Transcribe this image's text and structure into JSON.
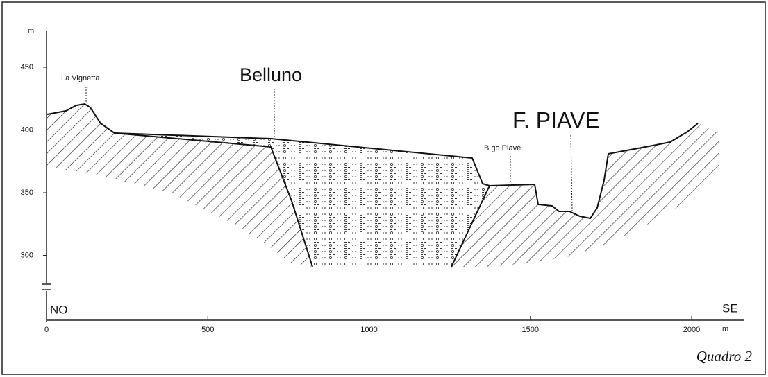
{
  "figure": {
    "caption": "Quadro 2",
    "labels": {
      "la_vignetta": "La Vignetta",
      "belluno": "Belluno",
      "b_go_piave": "B.go Piave",
      "f_piave": "F. PIAVE",
      "no": "NO",
      "se": "SE"
    },
    "y_axis": {
      "unit": "m",
      "ticks": [
        450,
        400,
        350,
        300
      ]
    },
    "x_axis": {
      "unit": "m",
      "ticks": [
        0,
        500,
        1000,
        1500,
        2000
      ]
    }
  }
}
